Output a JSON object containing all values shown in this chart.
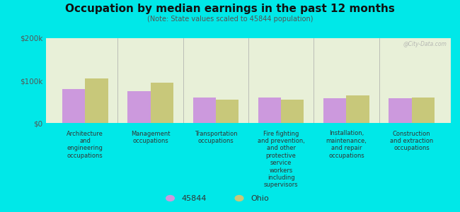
{
  "title": "Occupation by median earnings in the past 12 months",
  "subtitle": "(Note: State values scaled to 45844 population)",
  "background_color": "#00e8e8",
  "plot_bg_color": "#e8f0d8",
  "categories": [
    "Architecture\nand\nengineering\noccupations",
    "Management\noccupations",
    "Transportation\noccupations",
    "Fire fighting\nand prevention,\nand other\nprotective\nservice\nworkers\nincluding\nsupervisors",
    "Installation,\nmaintenance,\nand repair\noccupations",
    "Construction\nand extraction\noccupations"
  ],
  "values_45844": [
    80000,
    75000,
    60000,
    60000,
    58000,
    58000
  ],
  "values_ohio": [
    105000,
    95000,
    55000,
    55000,
    65000,
    60000
  ],
  "color_45844": "#cc99dd",
  "color_ohio": "#c8c87a",
  "ylim": [
    0,
    200000
  ],
  "yticks": [
    0,
    100000,
    200000
  ],
  "ytick_labels": [
    "$0",
    "$100k",
    "$200k"
  ],
  "legend_labels": [
    "45844",
    "Ohio"
  ],
  "bar_width": 0.35,
  "watermark": "@City-Data.com"
}
